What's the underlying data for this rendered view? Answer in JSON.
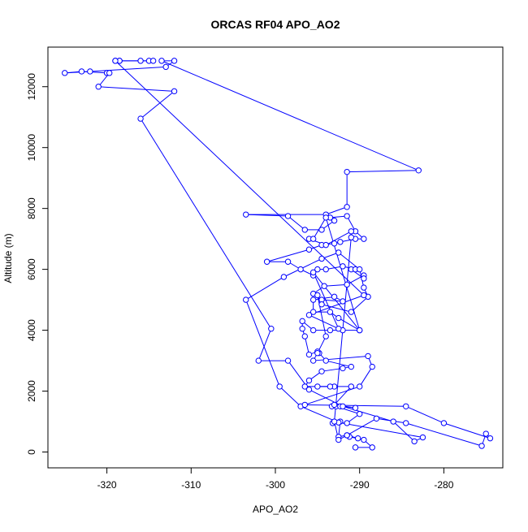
{
  "chart_data": {
    "type": "line",
    "title": "ORCAS RF04 APO_AO2",
    "xlabel": "APO_AO2",
    "ylabel": "Altitude (m)",
    "xlim": [
      -327,
      -273
    ],
    "ylim": [
      -520,
      13300
    ],
    "xticks": [
      -320,
      -310,
      -300,
      -290,
      -280
    ],
    "yticks": [
      0,
      2000,
      4000,
      6000,
      8000,
      10000,
      12000
    ],
    "grid": false,
    "series": [
      {
        "color": "#0000ff",
        "marker": "open-circle",
        "points": [
          [
            -290.5,
            150
          ],
          [
            -288.5,
            150
          ],
          [
            -289.5,
            400
          ],
          [
            -291.2,
            500
          ],
          [
            -290.2,
            450
          ],
          [
            -291.5,
            550
          ],
          [
            -292.5,
            500
          ],
          [
            -292.3,
            1000
          ],
          [
            -293.2,
            950
          ],
          [
            -291.5,
            950
          ],
          [
            -290.0,
            1250
          ],
          [
            -292.8,
            1500
          ],
          [
            -293.3,
            1500
          ],
          [
            -292.3,
            1500
          ],
          [
            -290.5,
            1450
          ],
          [
            -293.0,
            1550
          ],
          [
            -291.0,
            2150
          ],
          [
            -293.0,
            2150
          ],
          [
            -295.0,
            2150
          ],
          [
            -293.5,
            2150
          ],
          [
            -296.5,
            2150
          ],
          [
            -296.0,
            2350
          ],
          [
            -294.5,
            2650
          ],
          [
            -292.0,
            2750
          ],
          [
            -291.0,
            2800
          ],
          [
            -294.0,
            3000
          ],
          [
            -294.8,
            3250
          ],
          [
            -295.0,
            3300
          ],
          [
            -296.0,
            3200
          ],
          [
            -296.5,
            3800
          ],
          [
            -296.8,
            4050
          ],
          [
            -296.8,
            4300
          ],
          [
            -295.5,
            4000
          ],
          [
            -293.5,
            4000
          ],
          [
            -292.0,
            4000
          ],
          [
            -290.0,
            4000
          ],
          [
            -292.5,
            4400
          ],
          [
            -293.5,
            4600
          ],
          [
            -295.5,
            4600
          ],
          [
            -295.5,
            5000
          ],
          [
            -293.0,
            5100
          ],
          [
            -292.0,
            4950
          ],
          [
            -294.5,
            5000
          ],
          [
            -295.5,
            5200
          ],
          [
            -294.2,
            5450
          ],
          [
            -291.5,
            5500
          ],
          [
            -289.5,
            5800
          ],
          [
            -289.5,
            5700
          ],
          [
            -291.0,
            6000
          ],
          [
            -290.5,
            6000
          ],
          [
            -292.0,
            6100
          ],
          [
            -294.0,
            6000
          ],
          [
            -295.0,
            6000
          ],
          [
            -295.5,
            5800
          ],
          [
            -297.0,
            6000
          ],
          [
            -298.5,
            6250
          ],
          [
            -301.0,
            6250
          ],
          [
            -296.0,
            6650
          ],
          [
            -294.5,
            6800
          ],
          [
            -293.0,
            6850
          ],
          [
            -292.3,
            6900
          ],
          [
            -290.5,
            7000
          ],
          [
            -289.5,
            7000
          ],
          [
            -290.5,
            7250
          ],
          [
            -291.5,
            7750
          ],
          [
            -293.5,
            7700
          ],
          [
            -293.0,
            7600
          ],
          [
            -294.5,
            7300
          ],
          [
            -296.5,
            7300
          ],
          [
            -298.5,
            7750
          ],
          [
            -303.5,
            7800
          ],
          [
            -294.0,
            7800
          ],
          [
            -291.5,
            8050
          ],
          [
            -291.5,
            9200
          ],
          [
            -283.0,
            9250
          ],
          [
            -313.5,
            12850
          ],
          [
            -312.0,
            12850
          ],
          [
            -313.0,
            12650
          ],
          [
            -322.0,
            12500
          ],
          [
            -325.0,
            12450
          ],
          [
            -323.0,
            12500
          ],
          [
            -320.0,
            12450
          ],
          [
            -319.7,
            12450
          ],
          [
            -321.0,
            12000
          ],
          [
            -312.0,
            11850
          ],
          [
            -316.0,
            10950
          ],
          [
            -300.5,
            4050
          ],
          [
            -302.0,
            3000
          ],
          [
            -298.5,
            3000
          ],
          [
            -296.0,
            2050
          ],
          [
            -292.0,
            1500
          ],
          [
            -286.0,
            1000
          ],
          [
            -283.5,
            350
          ],
          [
            -282.5,
            480
          ],
          [
            -292.5,
            970
          ],
          [
            -297.0,
            1500
          ],
          [
            -299.5,
            2150
          ],
          [
            -303.5,
            5000
          ],
          [
            -299.0,
            5750
          ],
          [
            -294.5,
            6350
          ],
          [
            -292.5,
            6550
          ],
          [
            -290.0,
            6000
          ],
          [
            -289.5,
            5400
          ],
          [
            -289.0,
            5100
          ],
          [
            -291.0,
            4600
          ],
          [
            -294.5,
            4850
          ],
          [
            -295.0,
            5150
          ],
          [
            -294.0,
            3800
          ],
          [
            -295.0,
            3250
          ],
          [
            -295.5,
            3000
          ],
          [
            -289.0,
            3150
          ],
          [
            -288.5,
            2800
          ],
          [
            -290.0,
            2150
          ],
          [
            -296.5,
            1550
          ],
          [
            -284.5,
            1500
          ],
          [
            -280.0,
            950
          ],
          [
            -274.5,
            450
          ],
          [
            -275.0,
            600
          ],
          [
            -275.5,
            200
          ],
          [
            -284.5,
            950
          ],
          [
            -288.0,
            1100
          ],
          [
            -291.5,
            550
          ],
          [
            -292.5,
            400
          ],
          [
            -293.0,
            1000
          ],
          [
            -291.0,
            7050
          ],
          [
            -291.0,
            7250
          ],
          [
            -294.0,
            6800
          ],
          [
            -296.0,
            7000
          ],
          [
            -295.5,
            7000
          ],
          [
            -294.0,
            7700
          ],
          [
            -290.0,
            4000
          ],
          [
            -295.5,
            5900
          ],
          [
            -292.5,
            4050
          ],
          [
            -296.0,
            4500
          ],
          [
            -289.5,
            5150
          ],
          [
            -319.0,
            12850
          ],
          [
            -318.5,
            12850
          ],
          [
            -316.0,
            12850
          ],
          [
            -315.0,
            12850
          ],
          [
            -314.5,
            12850
          ],
          [
            -318.5,
            12850
          ],
          [
            -319.0,
            12850
          ]
        ]
      }
    ]
  }
}
